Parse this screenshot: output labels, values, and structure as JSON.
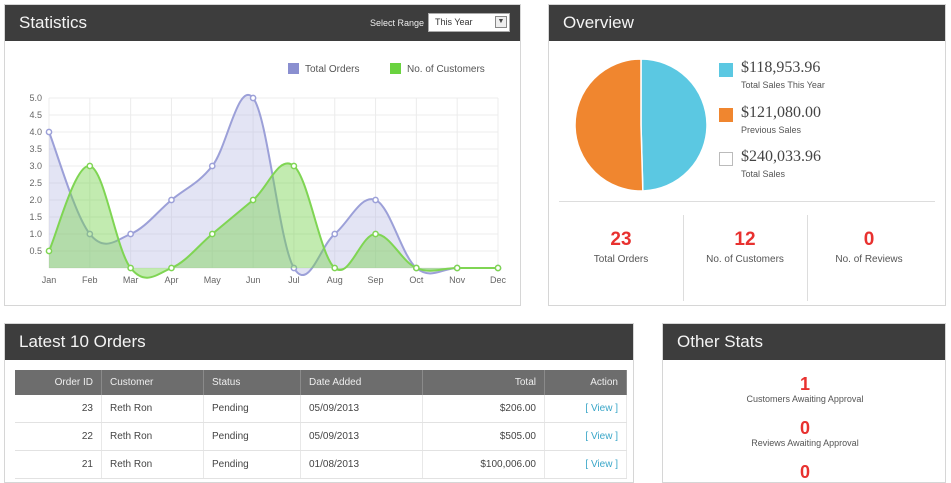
{
  "statistics": {
    "title": "Statistics",
    "range_label": "Select Range",
    "range_value": "This Year",
    "legend": [
      {
        "label": "Total Orders",
        "color": "#8a8fd0"
      },
      {
        "label": "No. of Customers",
        "color": "#6ad33f"
      }
    ],
    "chart_data": {
      "type": "area",
      "categories": [
        "Jan",
        "Feb",
        "Mar",
        "Apr",
        "May",
        "Jun",
        "Jul",
        "Aug",
        "Sep",
        "Oct",
        "Nov",
        "Dec"
      ],
      "series": [
        {
          "name": "Total Orders",
          "values": [
            4,
            1,
            1,
            2,
            3,
            5,
            0,
            1,
            2,
            0,
            0,
            0
          ]
        },
        {
          "name": "No. of Customers",
          "values": [
            0.5,
            3,
            0,
            0,
            1,
            2,
            3,
            0,
            1,
            0,
            0,
            0
          ]
        }
      ],
      "yticks": [
        "0.5",
        "1.0",
        "1.5",
        "2.0",
        "2.5",
        "3.0",
        "3.5",
        "4.0",
        "4.5",
        "5.0"
      ],
      "ylim": [
        0,
        5
      ],
      "grid": true,
      "legend_position": "top-right"
    }
  },
  "overview": {
    "title": "Overview",
    "items": [
      {
        "amount": "$118,953.96",
        "caption": "Total Sales This Year",
        "color": "#5bc8e2"
      },
      {
        "amount": "$121,080.00",
        "caption": "Previous Sales",
        "color": "#f0862f"
      },
      {
        "amount": "$240,033.96",
        "caption": "Total Sales",
        "color": "#ffffff"
      }
    ],
    "chart_data": {
      "type": "pie",
      "slices": [
        {
          "label": "Total Sales This Year",
          "value": 118953.96,
          "color": "#5bc8e2"
        },
        {
          "label": "Previous Sales",
          "value": 121080.0,
          "color": "#f0862f"
        }
      ]
    },
    "metrics": [
      {
        "value": "23",
        "label": "Total Orders"
      },
      {
        "value": "12",
        "label": "No. of Customers"
      },
      {
        "value": "0",
        "label": "No. of Reviews"
      }
    ]
  },
  "orders": {
    "title": "Latest 10 Orders",
    "columns": [
      "Order ID",
      "Customer",
      "Status",
      "Date Added",
      "Total",
      "Action"
    ],
    "rows": [
      {
        "id": "23",
        "customer": "Reth Ron",
        "status": "Pending",
        "date": "05/09/2013",
        "total": "$206.00",
        "action": "[ View ]"
      },
      {
        "id": "22",
        "customer": "Reth Ron",
        "status": "Pending",
        "date": "05/09/2013",
        "total": "$505.00",
        "action": "[ View ]"
      },
      {
        "id": "21",
        "customer": "Reth Ron",
        "status": "Pending",
        "date": "01/08/2013",
        "total": "$100,006.00",
        "action": "[ View ]"
      }
    ]
  },
  "other_stats": {
    "title": "Other Stats",
    "items": [
      {
        "value": "1",
        "label": "Customers Awaiting Approval"
      },
      {
        "value": "0",
        "label": "Reviews Awaiting Approval"
      },
      {
        "value": "0",
        "label": ""
      }
    ]
  }
}
